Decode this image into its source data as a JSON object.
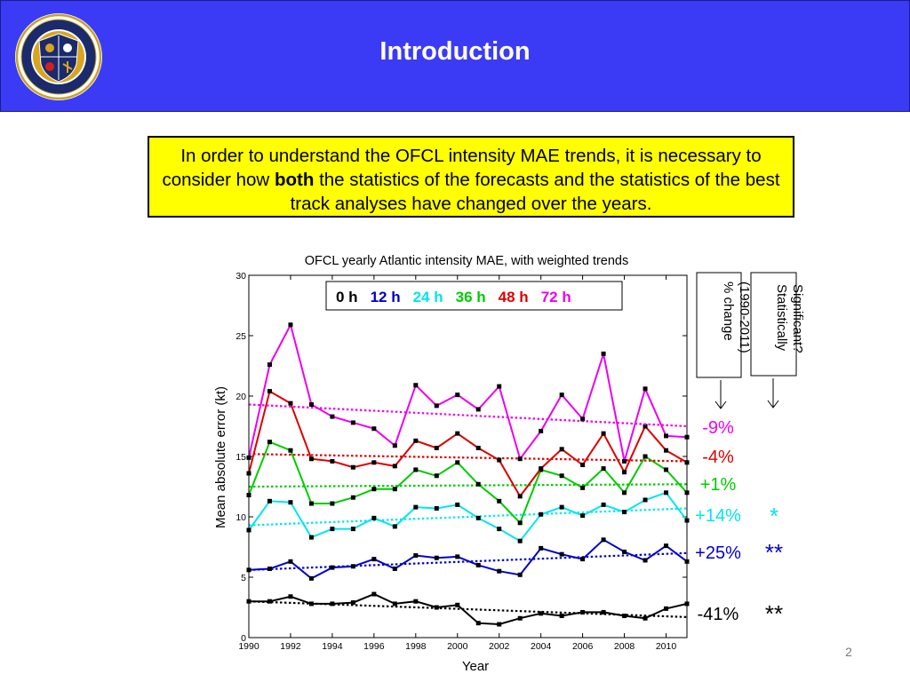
{
  "slide": {
    "title": "Introduction",
    "page_number": "2"
  },
  "intro": {
    "text_before": "In order to understand the OFCL intensity MAE trends, it is necessary to consider how",
    "bold": "both",
    "text_after": "the statistics of the forecasts and the statistics of the best track analyses have changed over the years."
  },
  "logo": {
    "top_text": "NAVAL RESEARCH LABORATORY",
    "bottom_text": "MONTEREY, CA"
  },
  "chart_data": {
    "type": "line",
    "title": "OFCL  yearly Atlantic intensity MAE, with weighted trends",
    "xlabel": "Year",
    "ylabel": "Mean absolute error (kt)",
    "xlim": [
      1990,
      2011
    ],
    "ylim": [
      0,
      30
    ],
    "x_ticks": [
      "1990",
      "1992",
      "1994",
      "1996",
      "1998",
      "2000",
      "2002",
      "2004",
      "2006",
      "2008",
      "2010"
    ],
    "y_ticks": [
      "0",
      "5",
      "10",
      "15",
      "20",
      "25",
      "30"
    ],
    "grid": false,
    "legend_position": "top-center",
    "x": [
      1990,
      1991,
      1992,
      1993,
      1994,
      1995,
      1996,
      1997,
      1998,
      1999,
      2000,
      2001,
      2002,
      2003,
      2004,
      2005,
      2006,
      2007,
      2008,
      2009,
      2010,
      2011
    ],
    "series": [
      {
        "name": "0 h",
        "color": "#000000",
        "values": [
          3.0,
          3.0,
          3.4,
          2.8,
          2.8,
          2.9,
          3.6,
          2.8,
          3.0,
          2.5,
          2.7,
          1.2,
          1.1,
          1.6,
          2.0,
          1.8,
          2.1,
          2.1,
          1.8,
          1.6,
          2.4,
          2.8
        ],
        "trend": [
          3.0,
          1.7
        ],
        "change": "-41%",
        "significant": "**"
      },
      {
        "name": "12 h",
        "color": "#0000cc",
        "values": [
          5.6,
          5.7,
          6.3,
          4.9,
          5.8,
          5.9,
          6.5,
          5.7,
          6.8,
          6.6,
          6.7,
          6.0,
          5.5,
          5.2,
          7.4,
          6.9,
          6.5,
          8.1,
          7.1,
          6.4,
          7.6,
          6.3
        ],
        "trend": [
          5.6,
          7.0
        ],
        "change": "+25%",
        "significant": "**"
      },
      {
        "name": "24 h",
        "color": "#00e5ee",
        "values": [
          8.9,
          11.3,
          11.2,
          8.3,
          9.0,
          9.0,
          9.9,
          9.2,
          10.8,
          10.7,
          11.0,
          9.9,
          9.0,
          8.0,
          10.2,
          10.8,
          10.1,
          11.0,
          10.4,
          11.4,
          12.0,
          9.7
        ],
        "trend": [
          9.3,
          10.7
        ],
        "change": "+14%",
        "significant": "*"
      },
      {
        "name": "36 h",
        "color": "#00cc00",
        "values": [
          11.8,
          16.2,
          15.5,
          11.1,
          11.1,
          11.6,
          12.3,
          12.3,
          13.9,
          13.4,
          14.5,
          12.7,
          11.3,
          9.5,
          13.9,
          13.4,
          12.4,
          14.0,
          12.0,
          15.0,
          13.9,
          12.0
        ],
        "trend": [
          12.5,
          12.7
        ],
        "change": "+1%",
        "significant": ""
      },
      {
        "name": "48 h",
        "color": "#dd0000",
        "values": [
          13.6,
          20.4,
          19.4,
          14.8,
          14.6,
          14.1,
          14.5,
          14.2,
          16.3,
          15.7,
          16.9,
          15.7,
          14.7,
          11.7,
          14.0,
          15.6,
          14.3,
          16.9,
          13.7,
          17.5,
          15.5,
          14.5
        ],
        "trend": [
          15.2,
          14.6
        ],
        "change": "-4%",
        "significant": ""
      },
      {
        "name": "72 h",
        "color": "#ee00ee",
        "values": [
          14.9,
          22.6,
          25.9,
          19.3,
          18.3,
          17.8,
          17.3,
          15.9,
          20.9,
          19.2,
          20.1,
          18.9,
          20.8,
          14.8,
          17.1,
          20.1,
          18.1,
          23.5,
          14.6,
          20.6,
          16.7,
          16.6
        ],
        "trend": [
          19.3,
          17.5
        ],
        "change": "-9%",
        "significant": ""
      }
    ],
    "annotations": {
      "change_header": "% change (1990-2011)",
      "significance_header": "Statistically Significant?"
    }
  }
}
